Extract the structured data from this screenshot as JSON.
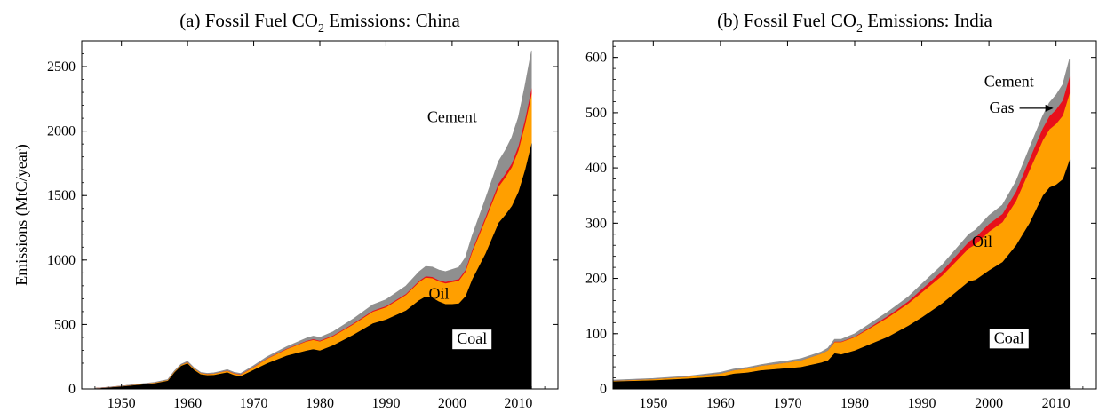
{
  "chart_data": [
    {
      "type": "area",
      "stacked": true,
      "title": "(a) Fossil Fuel CO",
      "title_sub": "2",
      "title_tail": " Emissions: China",
      "ylabel": "Emissions (MtC/year)",
      "xlim": [
        1944,
        2016
      ],
      "ylim": [
        0,
        2700
      ],
      "xticks": [
        1950,
        1960,
        1970,
        1980,
        1990,
        2000,
        2010
      ],
      "yticks": [
        0,
        500,
        1000,
        1500,
        2000,
        2500
      ],
      "x": [
        1946,
        1950,
        1955,
        1957,
        1958,
        1959,
        1960,
        1961,
        1962,
        1963,
        1964,
        1965,
        1966,
        1967,
        1968,
        1970,
        1972,
        1975,
        1978,
        1979,
        1980,
        1982,
        1985,
        1988,
        1990,
        1993,
        1995,
        1996,
        1997,
        1998,
        1999,
        2000,
        2001,
        2002,
        2003,
        2005,
        2007,
        2008,
        2009,
        2010,
        2011,
        2012
      ],
      "series": [
        {
          "name": "Coal",
          "color": "#000000",
          "label_at": [
            2003,
            350
          ],
          "values": [
            5,
            20,
            45,
            65,
            130,
            180,
            200,
            150,
            115,
            108,
            110,
            120,
            130,
            110,
            100,
            150,
            200,
            260,
            300,
            310,
            300,
            340,
            420,
            510,
            540,
            610,
            690,
            720,
            710,
            680,
            660,
            660,
            665,
            720,
            850,
            1050,
            1290,
            1350,
            1420,
            1530,
            1700,
            1910
          ]
        },
        {
          "name": "Oil",
          "color": "#ff9f00",
          "label_at": [
            1998,
            700
          ],
          "values": [
            0,
            2,
            4,
            5,
            6,
            7,
            8,
            8,
            8,
            8,
            9,
            10,
            11,
            11,
            11,
            20,
            35,
            50,
            70,
            72,
            70,
            70,
            80,
            90,
            95,
            120,
            140,
            145,
            150,
            155,
            160,
            170,
            175,
            190,
            210,
            260,
            280,
            290,
            300,
            320,
            350,
            380
          ]
        },
        {
          "name": "Gas",
          "color": "#e8101a",
          "values": [
            0,
            0,
            0,
            0,
            0,
            0,
            1,
            1,
            1,
            1,
            1,
            1,
            2,
            2,
            2,
            2,
            3,
            4,
            5,
            6,
            6,
            6,
            7,
            8,
            8,
            8,
            9,
            10,
            10,
            10,
            11,
            12,
            13,
            14,
            15,
            20,
            25,
            28,
            30,
            35,
            40,
            45
          ]
        },
        {
          "name": "Cement",
          "color": "#8f8f8f",
          "label_at": [
            2000,
            2070
          ],
          "values": [
            0,
            1,
            2,
            3,
            4,
            5,
            6,
            5,
            4,
            4,
            5,
            6,
            7,
            7,
            7,
            10,
            12,
            15,
            20,
            22,
            24,
            28,
            35,
            45,
            50,
            60,
            70,
            75,
            76,
            78,
            80,
            85,
            90,
            95,
            110,
            140,
            170,
            180,
            200,
            220,
            260,
            290
          ]
        }
      ]
    },
    {
      "type": "area",
      "stacked": true,
      "title": "(b) Fossil Fuel CO",
      "title_sub": "2",
      "title_tail": " Emissions: India",
      "ylabel": "",
      "xlim": [
        1944,
        2016
      ],
      "ylim": [
        0,
        630
      ],
      "xticks": [
        1950,
        1960,
        1970,
        1980,
        1990,
        2000,
        2010
      ],
      "yticks": [
        0,
        100,
        200,
        300,
        400,
        500,
        600
      ],
      "x": [
        1944,
        1950,
        1955,
        1960,
        1962,
        1964,
        1966,
        1968,
        1970,
        1972,
        1975,
        1976,
        1977,
        1978,
        1980,
        1982,
        1985,
        1988,
        1990,
        1993,
        1995,
        1997,
        1998,
        2000,
        2002,
        2004,
        2006,
        2008,
        2009,
        2010,
        2011,
        2012
      ],
      "series": [
        {
          "name": "Coal",
          "color": "#000000",
          "label_at": [
            2003,
            83
          ],
          "values": [
            14,
            16,
            19,
            23,
            28,
            30,
            34,
            36,
            38,
            40,
            48,
            52,
            65,
            63,
            70,
            80,
            95,
            115,
            130,
            155,
            175,
            195,
            198,
            215,
            230,
            260,
            300,
            350,
            365,
            370,
            380,
            415
          ]
        },
        {
          "name": "Oil",
          "color": "#ff9f00",
          "label_at": [
            1999,
            257
          ],
          "values": [
            1,
            2,
            3,
            5,
            6,
            7,
            8,
            9,
            10,
            12,
            16,
            18,
            20,
            22,
            24,
            28,
            35,
            40,
            45,
            50,
            55,
            60,
            64,
            70,
            72,
            80,
            95,
            100,
            105,
            110,
            115,
            120
          ]
        },
        {
          "name": "Gas",
          "color": "#e8101a",
          "label_at": [
            2008,
            500
          ],
          "label": "Gas",
          "values": [
            0,
            0,
            0,
            0,
            0,
            0,
            0,
            0,
            0,
            0,
            0,
            0,
            1,
            1,
            1,
            2,
            3,
            4,
            6,
            8,
            10,
            12,
            13,
            14,
            15,
            17,
            20,
            22,
            24,
            26,
            28,
            30
          ]
        },
        {
          "name": "Cement",
          "color": "#8f8f8f",
          "label_at": [
            2003,
            547
          ],
          "values": [
            1,
            1,
            1,
            2,
            2,
            2,
            2,
            3,
            3,
            3,
            3,
            4,
            4,
            4,
            5,
            6,
            7,
            8,
            9,
            11,
            12,
            13,
            13,
            15,
            16,
            18,
            20,
            22,
            24,
            26,
            28,
            32
          ]
        }
      ]
    }
  ]
}
